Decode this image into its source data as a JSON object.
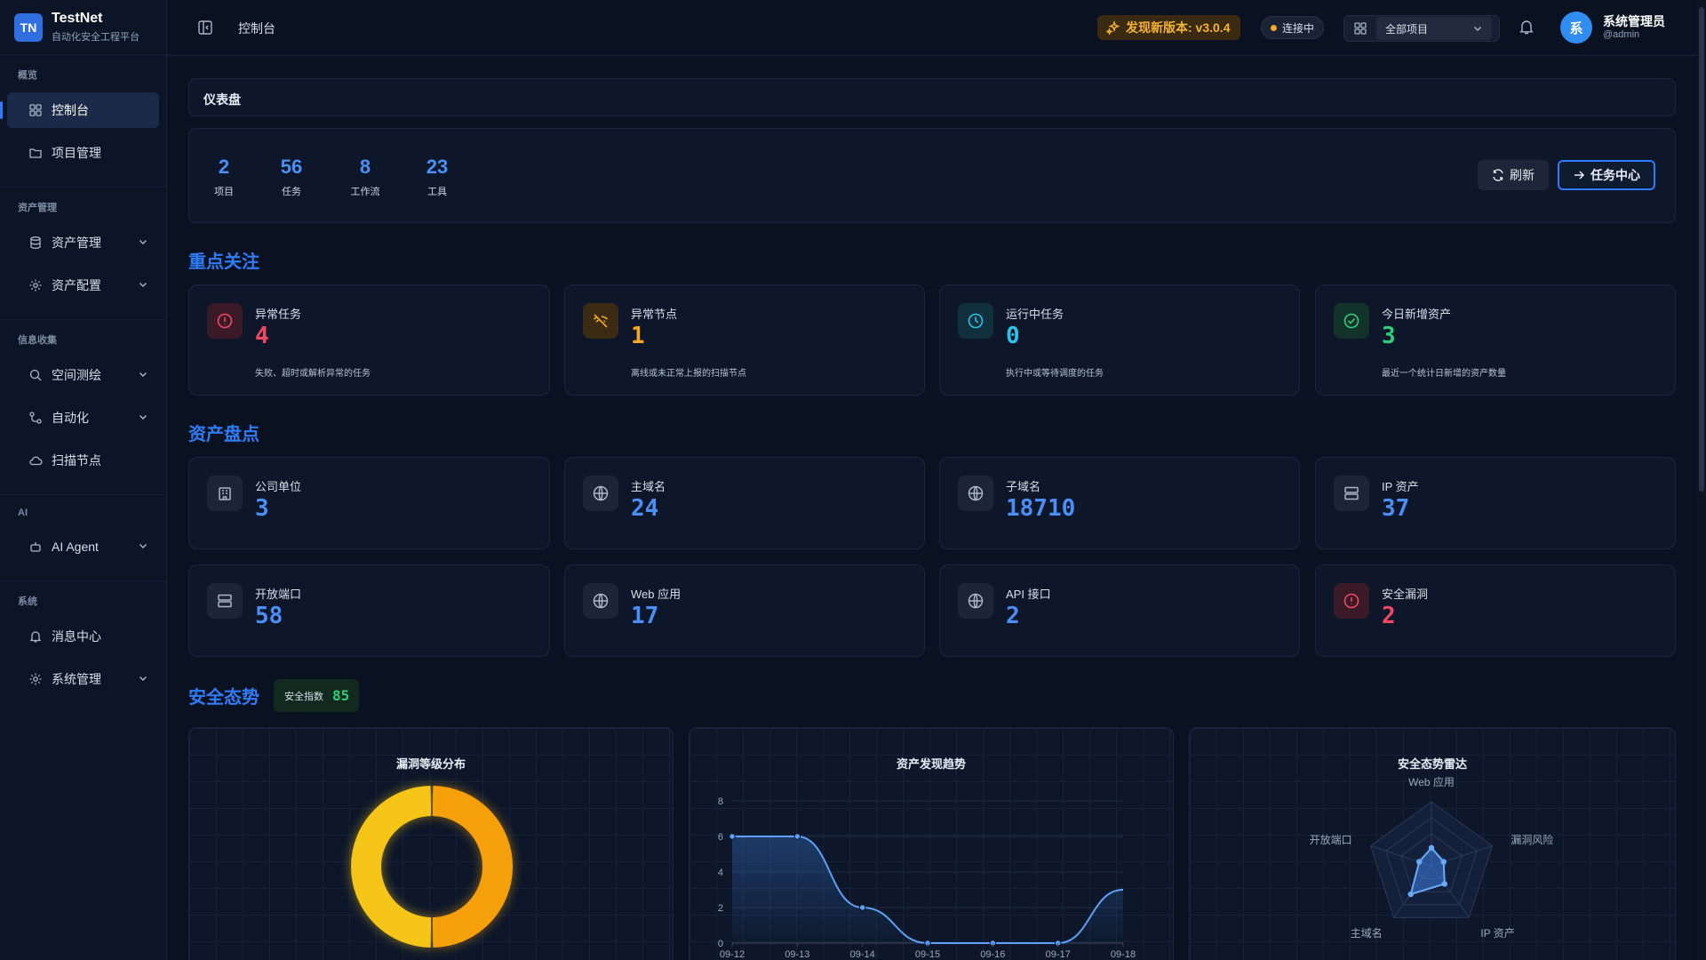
{
  "brand": {
    "logo": "TN",
    "title": "TestNet",
    "subtitle": "自动化安全工程平台"
  },
  "sidebar": {
    "groups": [
      {
        "title": "概览",
        "items": [
          {
            "label": "控制台",
            "icon": "dashboard-icon",
            "active": true
          },
          {
            "label": "项目管理",
            "icon": "folder-icon"
          }
        ]
      },
      {
        "title": "资产管理",
        "items": [
          {
            "label": "资产管理",
            "icon": "database-icon",
            "expandable": true
          },
          {
            "label": "资产配置",
            "icon": "gear-icon",
            "expandable": true
          }
        ]
      },
      {
        "title": "信息收集",
        "items": [
          {
            "label": "空间测绘",
            "icon": "search-icon",
            "expandable": true
          },
          {
            "label": "自动化",
            "icon": "workflow-icon",
            "expandable": true
          },
          {
            "label": "扫描节点",
            "icon": "cloud-icon"
          }
        ]
      },
      {
        "title": "AI",
        "items": [
          {
            "label": "AI Agent",
            "icon": "robot-icon",
            "expandable": true
          }
        ]
      },
      {
        "title": "系统",
        "items": [
          {
            "label": "消息中心",
            "icon": "bell-icon"
          },
          {
            "label": "系统管理",
            "icon": "gear-icon",
            "expandable": true
          }
        ]
      }
    ]
  },
  "topbar": {
    "breadcrumb": "控制台",
    "update_badge": "发现新版本: v3.0.4",
    "connection": "连接中",
    "project_select": "全部项目",
    "user": {
      "avatar": "系",
      "name": "系统管理员",
      "handle": "@admin"
    }
  },
  "dashboard": {
    "header": "仪表盘",
    "stats": [
      {
        "value": "2",
        "label": "项目"
      },
      {
        "value": "56",
        "label": "任务"
      },
      {
        "value": "8",
        "label": "工作流"
      },
      {
        "value": "23",
        "label": "工具"
      }
    ],
    "refresh_label": "刷新",
    "task_center_label": "任务中心"
  },
  "focus": {
    "title": "重点关注",
    "cards": [
      {
        "label": "异常任务",
        "value": "4",
        "desc": "失败、超时或解析异常的任务",
        "icon": "alert-circle-icon",
        "color": "#f04863"
      },
      {
        "label": "异常节点",
        "value": "1",
        "desc": "离线或未正常上报的扫描节点",
        "icon": "wifi-off-icon",
        "color": "#f5a623"
      },
      {
        "label": "运行中任务",
        "value": "0",
        "desc": "执行中或等待调度的任务",
        "icon": "clock-icon",
        "color": "#2bc4e8"
      },
      {
        "label": "今日新增资产",
        "value": "3",
        "desc": "最近一个统计日新增的资产数量",
        "icon": "check-circle-icon",
        "color": "#2fcf7a"
      }
    ]
  },
  "assets": {
    "title": "资产盘点",
    "cards": [
      {
        "label": "公司单位",
        "value": "3",
        "icon": "building-icon"
      },
      {
        "label": "主域名",
        "value": "24",
        "icon": "globe-icon"
      },
      {
        "label": "子域名",
        "value": "18710",
        "icon": "globe-icon"
      },
      {
        "label": "IP 资产",
        "value": "37",
        "icon": "server-icon"
      },
      {
        "label": "开放端口",
        "value": "58",
        "icon": "server-icon"
      },
      {
        "label": "Web 应用",
        "value": "17",
        "icon": "globe-icon"
      },
      {
        "label": "API 接口",
        "value": "2",
        "icon": "globe-icon"
      },
      {
        "label": "安全漏洞",
        "value": "2",
        "icon": "alert-circle-icon",
        "color": "#f04863"
      }
    ]
  },
  "security": {
    "title": "安全态势",
    "score_label": "安全指数",
    "score": "85"
  },
  "chart_data": [
    {
      "type": "pie",
      "title": "漏洞等级分布",
      "donut": true,
      "slices": [
        {
          "value": 1,
          "color": "#f5a00a"
        },
        {
          "value": 1,
          "color": "#f5c518"
        }
      ]
    },
    {
      "type": "line",
      "title": "资产发现趋势",
      "categories": [
        "09-12",
        "09-13",
        "09-14",
        "09-15",
        "09-16",
        "09-17",
        "09-18"
      ],
      "values": [
        6,
        6,
        2,
        0,
        0,
        0,
        3
      ],
      "ylim": [
        0,
        8
      ],
      "yticks": [
        0,
        2,
        4,
        6,
        8
      ],
      "grid": true
    },
    {
      "type": "radar",
      "title": "安全态势雷达",
      "axes": [
        "Web 应用",
        "漏洞风险",
        "IP 资产",
        "主域名",
        "开放端口"
      ],
      "values": [
        0.28,
        0.2,
        0.35,
        0.55,
        0.2
      ]
    }
  ]
}
